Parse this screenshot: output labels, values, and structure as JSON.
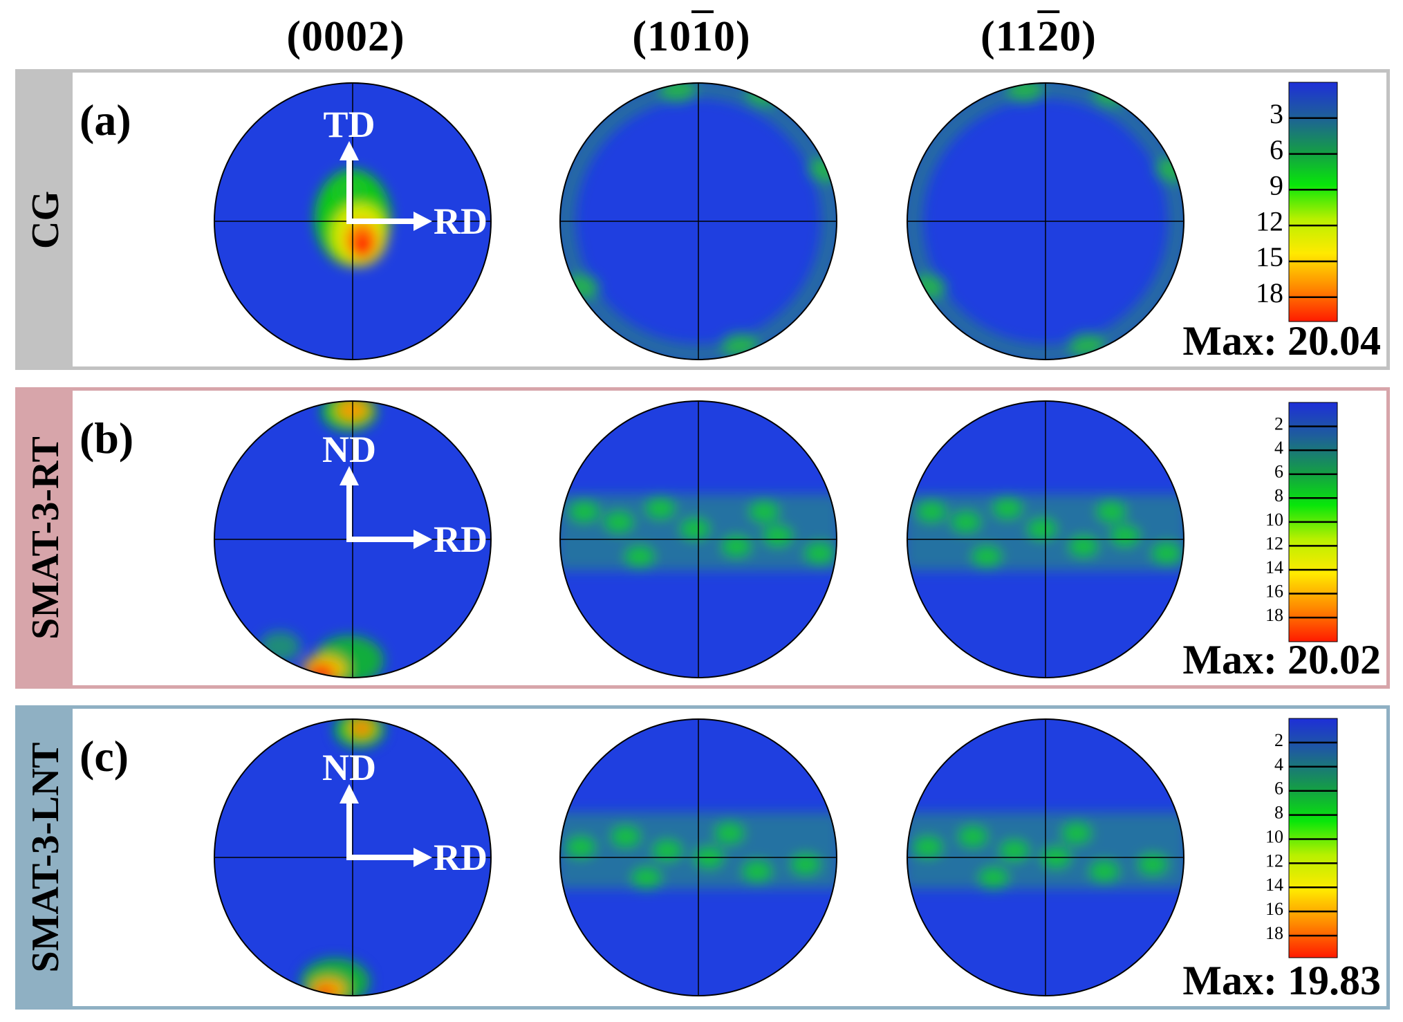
{
  "columns": [
    {
      "pre": "(000",
      "bar": "",
      "post": "2)"
    },
    {
      "pre": "(10",
      "bar": "1",
      "post": "0)"
    },
    {
      "pre": "(11",
      "bar": "2",
      "post": "0)"
    }
  ],
  "panels": [
    {
      "id": "a",
      "letter": "(a)",
      "sample": "CG",
      "side_color": "#c2c2c2",
      "border_color": "#c2c2c2",
      "arrow_up": "TD",
      "arrow_right": "RD",
      "max_text": "Max: 20.04",
      "max_value": 20.04,
      "colorbar_ticks": [
        "3",
        "6",
        "9",
        "12",
        "15",
        "18"
      ],
      "colorbar_tick_values": [
        3,
        6,
        9,
        12,
        15,
        18
      ]
    },
    {
      "id": "b",
      "letter": "(b)",
      "sample": "SMAT-3-RT",
      "side_color": "#d7a5aa",
      "border_color": "#d7a5aa",
      "arrow_up": "ND",
      "arrow_right": "RD",
      "max_text": "Max: 20.02",
      "max_value": 20.02,
      "colorbar_ticks": [
        "2",
        "4",
        "6",
        "8",
        "10",
        "12",
        "14",
        "16",
        "18"
      ],
      "colorbar_tick_values": [
        2,
        4,
        6,
        8,
        10,
        12,
        14,
        16,
        18
      ]
    },
    {
      "id": "c",
      "letter": "(c)",
      "sample": "SMAT-3-LNT",
      "side_color": "#8fb0c3",
      "border_color": "#8fb0c3",
      "arrow_up": "ND",
      "arrow_right": "RD",
      "max_text": "Max: 19.83",
      "max_value": 19.83,
      "colorbar_ticks": [
        "2",
        "4",
        "6",
        "8",
        "10",
        "12",
        "14",
        "16",
        "18"
      ],
      "colorbar_tick_values": [
        2,
        4,
        6,
        8,
        10,
        12,
        14,
        16,
        18
      ]
    }
  ],
  "colors": {
    "low": "#1f3fe0",
    "colormap": [
      "#1e2fd8",
      "#1e5f9a",
      "#159a4a",
      "#08e60a",
      "#b8f000",
      "#ffea00",
      "#ff8a00",
      "#ff1a00"
    ]
  }
}
